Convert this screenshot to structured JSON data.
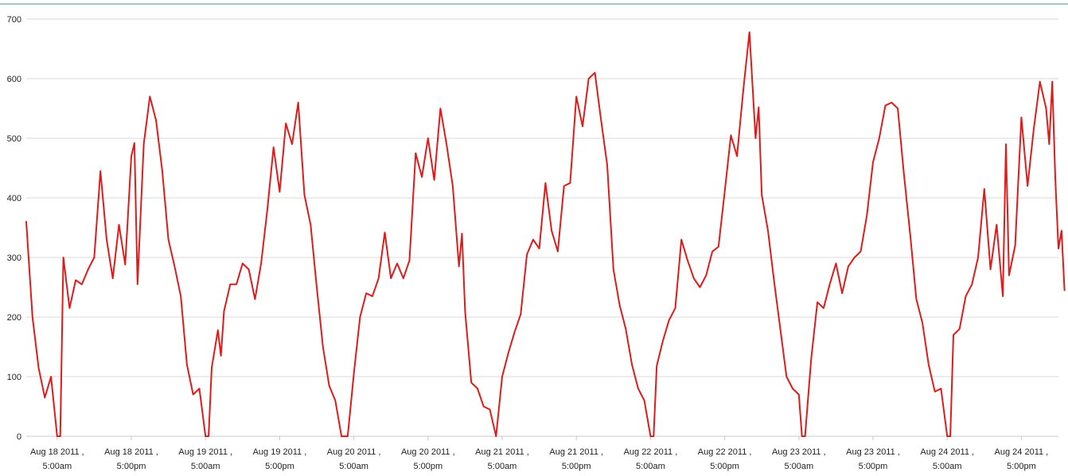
{
  "chart_data": {
    "type": "line",
    "title": "",
    "xlabel": "",
    "ylabel": "",
    "ylim": [
      0,
      700
    ],
    "yticks": [
      0,
      100,
      200,
      300,
      400,
      500,
      600,
      700
    ],
    "grid": true,
    "legend": "none",
    "xlim": [
      "Aug 18 2011 00:00",
      "Aug 24 2011 23:00"
    ],
    "xticks": [
      {
        "value": "Aug 18 2011 05:00",
        "line1": "Aug 18 2011 ,",
        "line2": "5:00am"
      },
      {
        "value": "Aug 18 2011 17:00",
        "line1": "Aug 18 2011 ,",
        "line2": "5:00pm"
      },
      {
        "value": "Aug 19 2011 05:00",
        "line1": "Aug 19 2011 ,",
        "line2": "5:00am"
      },
      {
        "value": "Aug 19 2011 17:00",
        "line1": "Aug 19 2011 ,",
        "line2": "5:00pm"
      },
      {
        "value": "Aug 20 2011 05:00",
        "line1": "Aug 20 2011 ,",
        "line2": "5:00am"
      },
      {
        "value": "Aug 20 2011 17:00",
        "line1": "Aug 20 2011 ,",
        "line2": "5:00pm"
      },
      {
        "value": "Aug 21 2011 05:00",
        "line1": "Aug 21 2011 ,",
        "line2": "5:00am"
      },
      {
        "value": "Aug 21 2011 17:00",
        "line1": "Aug 21 2011 ,",
        "line2": "5:00pm"
      },
      {
        "value": "Aug 22 2011 05:00",
        "line1": "Aug 22 2011 ,",
        "line2": "5:00am"
      },
      {
        "value": "Aug 22 2011 17:00",
        "line1": "Aug 22 2011 ,",
        "line2": "5:00pm"
      },
      {
        "value": "Aug 23 2011 05:00",
        "line1": "Aug 23 2011 ,",
        "line2": "5:00am"
      },
      {
        "value": "Aug 23 2011 17:00",
        "line1": "Aug 23 2011 ,",
        "line2": "5:00pm"
      },
      {
        "value": "Aug 24 2011 05:00",
        "line1": "Aug 24 2011 ,",
        "line2": "5:00am"
      },
      {
        "value": "Aug 24 2011 17:00",
        "line1": "Aug 24 2011 ,",
        "line2": "5:00pm"
      }
    ],
    "series": [
      {
        "color": "#dd1c1c",
        "points": [
          [
            "Aug 18 2011 00:00",
            360
          ],
          [
            "Aug 18 2011 01:00",
            200
          ],
          [
            "Aug 18 2011 02:00",
            115
          ],
          [
            "Aug 18 2011 03:00",
            65
          ],
          [
            "Aug 18 2011 04:00",
            100
          ],
          [
            "Aug 18 2011 05:00",
            0
          ],
          [
            "Aug 18 2011 05:30",
            0
          ],
          [
            "Aug 18 2011 06:00",
            300
          ],
          [
            "Aug 18 2011 07:00",
            215
          ],
          [
            "Aug 18 2011 08:00",
            262
          ],
          [
            "Aug 18 2011 09:00",
            255
          ],
          [
            "Aug 18 2011 10:00",
            280
          ],
          [
            "Aug 18 2011 11:00",
            300
          ],
          [
            "Aug 18 2011 12:00",
            445
          ],
          [
            "Aug 18 2011 13:00",
            330
          ],
          [
            "Aug 18 2011 14:00",
            265
          ],
          [
            "Aug 18 2011 15:00",
            355
          ],
          [
            "Aug 18 2011 16:00",
            288
          ],
          [
            "Aug 18 2011 17:00",
            470
          ],
          [
            "Aug 18 2011 17:30",
            492
          ],
          [
            "Aug 18 2011 18:00",
            255
          ],
          [
            "Aug 18 2011 19:00",
            490
          ],
          [
            "Aug 18 2011 20:00",
            570
          ],
          [
            "Aug 18 2011 21:00",
            530
          ],
          [
            "Aug 18 2011 22:00",
            445
          ],
          [
            "Aug 18 2011 23:00",
            330
          ],
          [
            "Aug 19 2011 00:00",
            285
          ],
          [
            "Aug 19 2011 01:00",
            235
          ],
          [
            "Aug 19 2011 02:00",
            120
          ],
          [
            "Aug 19 2011 03:00",
            70
          ],
          [
            "Aug 19 2011 04:00",
            80
          ],
          [
            "Aug 19 2011 05:00",
            0
          ],
          [
            "Aug 19 2011 05:30",
            0
          ],
          [
            "Aug 19 2011 06:00",
            115
          ],
          [
            "Aug 19 2011 07:00",
            178
          ],
          [
            "Aug 19 2011 07:30",
            135
          ],
          [
            "Aug 19 2011 08:00",
            210
          ],
          [
            "Aug 19 2011 09:00",
            255
          ],
          [
            "Aug 19 2011 10:00",
            255
          ],
          [
            "Aug 19 2011 11:00",
            290
          ],
          [
            "Aug 19 2011 12:00",
            280
          ],
          [
            "Aug 19 2011 13:00",
            230
          ],
          [
            "Aug 19 2011 14:00",
            290
          ],
          [
            "Aug 19 2011 15:00",
            380
          ],
          [
            "Aug 19 2011 16:00",
            485
          ],
          [
            "Aug 19 2011 17:00",
            410
          ],
          [
            "Aug 19 2011 18:00",
            525
          ],
          [
            "Aug 19 2011 19:00",
            490
          ],
          [
            "Aug 19 2011 20:00",
            560
          ],
          [
            "Aug 19 2011 21:00",
            405
          ],
          [
            "Aug 19 2011 22:00",
            355
          ],
          [
            "Aug 19 2011 23:00",
            250
          ],
          [
            "Aug 20 2011 00:00",
            150
          ],
          [
            "Aug 20 2011 01:00",
            85
          ],
          [
            "Aug 20 2011 02:00",
            60
          ],
          [
            "Aug 20 2011 03:00",
            0
          ],
          [
            "Aug 20 2011 04:00",
            0
          ],
          [
            "Aug 20 2011 05:00",
            105
          ],
          [
            "Aug 20 2011 06:00",
            200
          ],
          [
            "Aug 20 2011 07:00",
            240
          ],
          [
            "Aug 20 2011 08:00",
            235
          ],
          [
            "Aug 20 2011 09:00",
            265
          ],
          [
            "Aug 20 2011 10:00",
            342
          ],
          [
            "Aug 20 2011 11:00",
            265
          ],
          [
            "Aug 20 2011 12:00",
            290
          ],
          [
            "Aug 20 2011 13:00",
            265
          ],
          [
            "Aug 20 2011 14:00",
            295
          ],
          [
            "Aug 20 2011 15:00",
            475
          ],
          [
            "Aug 20 2011 16:00",
            435
          ],
          [
            "Aug 20 2011 17:00",
            500
          ],
          [
            "Aug 20 2011 18:00",
            430
          ],
          [
            "Aug 20 2011 19:00",
            550
          ],
          [
            "Aug 20 2011 20:00",
            490
          ],
          [
            "Aug 20 2011 21:00",
            420
          ],
          [
            "Aug 20 2011 22:00",
            285
          ],
          [
            "Aug 20 2011 22:30",
            340
          ],
          [
            "Aug 20 2011 23:00",
            210
          ],
          [
            "Aug 21 2011 00:00",
            90
          ],
          [
            "Aug 21 2011 01:00",
            80
          ],
          [
            "Aug 21 2011 02:00",
            50
          ],
          [
            "Aug 21 2011 03:00",
            45
          ],
          [
            "Aug 21 2011 04:00",
            0
          ],
          [
            "Aug 21 2011 05:00",
            100
          ],
          [
            "Aug 21 2011 06:00",
            140
          ],
          [
            "Aug 21 2011 07:00",
            175
          ],
          [
            "Aug 21 2011 08:00",
            205
          ],
          [
            "Aug 21 2011 09:00",
            305
          ],
          [
            "Aug 21 2011 10:00",
            330
          ],
          [
            "Aug 21 2011 11:00",
            315
          ],
          [
            "Aug 21 2011 12:00",
            425
          ],
          [
            "Aug 21 2011 13:00",
            345
          ],
          [
            "Aug 21 2011 14:00",
            310
          ],
          [
            "Aug 21 2011 15:00",
            420
          ],
          [
            "Aug 21 2011 16:00",
            425
          ],
          [
            "Aug 21 2011 17:00",
            570
          ],
          [
            "Aug 21 2011 18:00",
            520
          ],
          [
            "Aug 21 2011 19:00",
            600
          ],
          [
            "Aug 21 2011 20:00",
            610
          ],
          [
            "Aug 21 2011 21:00",
            530
          ],
          [
            "Aug 21 2011 22:00",
            455
          ],
          [
            "Aug 21 2011 23:00",
            280
          ],
          [
            "Aug 22 2011 00:00",
            220
          ],
          [
            "Aug 22 2011 01:00",
            180
          ],
          [
            "Aug 22 2011 02:00",
            120
          ],
          [
            "Aug 22 2011 03:00",
            80
          ],
          [
            "Aug 22 2011 04:00",
            60
          ],
          [
            "Aug 22 2011 05:00",
            0
          ],
          [
            "Aug 22 2011 05:30",
            0
          ],
          [
            "Aug 22 2011 06:00",
            118
          ],
          [
            "Aug 22 2011 07:00",
            160
          ],
          [
            "Aug 22 2011 08:00",
            195
          ],
          [
            "Aug 22 2011 09:00",
            215
          ],
          [
            "Aug 22 2011 10:00",
            330
          ],
          [
            "Aug 22 2011 11:00",
            295
          ],
          [
            "Aug 22 2011 12:00",
            265
          ],
          [
            "Aug 22 2011 13:00",
            250
          ],
          [
            "Aug 22 2011 14:00",
            270
          ],
          [
            "Aug 22 2011 15:00",
            310
          ],
          [
            "Aug 22 2011 16:00",
            318
          ],
          [
            "Aug 22 2011 17:00",
            410
          ],
          [
            "Aug 22 2011 18:00",
            505
          ],
          [
            "Aug 22 2011 19:00",
            470
          ],
          [
            "Aug 22 2011 20:00",
            580
          ],
          [
            "Aug 22 2011 21:00",
            678
          ],
          [
            "Aug 22 2011 22:00",
            500
          ],
          [
            "Aug 22 2011 22:30",
            552
          ],
          [
            "Aug 22 2011 23:00",
            405
          ],
          [
            "Aug 23 2011 00:00",
            345
          ],
          [
            "Aug 23 2011 01:00",
            260
          ],
          [
            "Aug 23 2011 02:00",
            180
          ],
          [
            "Aug 23 2011 03:00",
            100
          ],
          [
            "Aug 23 2011 04:00",
            80
          ],
          [
            "Aug 23 2011 05:00",
            70
          ],
          [
            "Aug 23 2011 05:30",
            0
          ],
          [
            "Aug 23 2011 06:00",
            0
          ],
          [
            "Aug 23 2011 07:00",
            130
          ],
          [
            "Aug 23 2011 08:00",
            225
          ],
          [
            "Aug 23 2011 09:00",
            215
          ],
          [
            "Aug 23 2011 10:00",
            255
          ],
          [
            "Aug 23 2011 11:00",
            290
          ],
          [
            "Aug 23 2011 12:00",
            240
          ],
          [
            "Aug 23 2011 13:00",
            285
          ],
          [
            "Aug 23 2011 14:00",
            300
          ],
          [
            "Aug 23 2011 15:00",
            310
          ],
          [
            "Aug 23 2011 16:00",
            370
          ],
          [
            "Aug 23 2011 17:00",
            460
          ],
          [
            "Aug 23 2011 18:00",
            500
          ],
          [
            "Aug 23 2011 19:00",
            555
          ],
          [
            "Aug 23 2011 20:00",
            560
          ],
          [
            "Aug 23 2011 21:00",
            550
          ],
          [
            "Aug 23 2011 22:00",
            440
          ],
          [
            "Aug 23 2011 23:00",
            340
          ],
          [
            "Aug 24 2011 00:00",
            230
          ],
          [
            "Aug 24 2011 01:00",
            190
          ],
          [
            "Aug 24 2011 02:00",
            120
          ],
          [
            "Aug 24 2011 03:00",
            75
          ],
          [
            "Aug 24 2011 04:00",
            80
          ],
          [
            "Aug 24 2011 05:00",
            0
          ],
          [
            "Aug 24 2011 05:30",
            0
          ],
          [
            "Aug 24 2011 06:00",
            170
          ],
          [
            "Aug 24 2011 07:00",
            180
          ],
          [
            "Aug 24 2011 08:00",
            235
          ],
          [
            "Aug 24 2011 09:00",
            255
          ],
          [
            "Aug 24 2011 10:00",
            300
          ],
          [
            "Aug 24 2011 11:00",
            415
          ],
          [
            "Aug 24 2011 12:00",
            280
          ],
          [
            "Aug 24 2011 13:00",
            355
          ],
          [
            "Aug 24 2011 14:00",
            235
          ],
          [
            "Aug 24 2011 14:30",
            490
          ],
          [
            "Aug 24 2011 15:00",
            270
          ],
          [
            "Aug 24 2011 16:00",
            320
          ],
          [
            "Aug 24 2011 17:00",
            535
          ],
          [
            "Aug 24 2011 18:00",
            420
          ],
          [
            "Aug 24 2011 19:00",
            515
          ],
          [
            "Aug 24 2011 20:00",
            595
          ],
          [
            "Aug 24 2011 21:00",
            550
          ],
          [
            "Aug 24 2011 21:30",
            490
          ],
          [
            "Aug 24 2011 22:00",
            595
          ],
          [
            "Aug 24 2011 22:30",
            430
          ],
          [
            "Aug 24 2011 23:00",
            315
          ],
          [
            "Aug 24 2011 23:30",
            345
          ],
          [
            "Aug 24 2011 23:59",
            245
          ]
        ]
      }
    ]
  }
}
